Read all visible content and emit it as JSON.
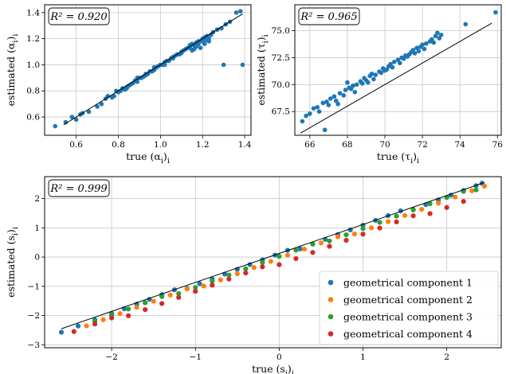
{
  "chart_data": [
    {
      "id": "alpha",
      "type": "scatter",
      "r2_label": "R² = 0.920",
      "xlabel_main": "true (α",
      "xlabel_sub": "i",
      "xlabel_tail": ")",
      "xlabel_sub2": "i",
      "ylabel_main": "estimated (α",
      "ylabel_sub": "i",
      "ylabel_tail": ")",
      "ylabel_sub2": "i",
      "xlim": [
        0.45,
        1.43
      ],
      "ylim": [
        0.46,
        1.46
      ],
      "xticks": [
        0.6,
        0.8,
        1.0,
        1.2,
        1.4
      ],
      "xtick_labels": [
        "0.6",
        "0.8",
        "1.0",
        "1.2",
        "1.4"
      ],
      "yticks": [
        0.6,
        0.8,
        1.0,
        1.2,
        1.4
      ],
      "ytick_labels": [
        "0.6",
        "0.8",
        "1.0",
        "1.2",
        "1.4"
      ],
      "grid": true,
      "identity_line": [
        [
          0.54,
          0.54
        ],
        [
          1.39,
          1.39
        ]
      ],
      "series": [
        {
          "color": "#1f77b4",
          "points": [
            [
              0.5,
              0.53
            ],
            [
              0.55,
              0.56
            ],
            [
              0.58,
              0.6
            ],
            [
              0.6,
              0.58
            ],
            [
              0.62,
              0.62
            ],
            [
              0.63,
              0.63
            ],
            [
              0.66,
              0.64
            ],
            [
              0.7,
              0.68
            ],
            [
              0.72,
              0.7
            ],
            [
              0.74,
              0.74
            ],
            [
              0.75,
              0.76
            ],
            [
              0.77,
              0.75
            ],
            [
              0.78,
              0.76
            ],
            [
              0.8,
              0.79
            ],
            [
              0.81,
              0.8
            ],
            [
              0.82,
              0.82
            ],
            [
              0.83,
              0.81
            ],
            [
              0.84,
              0.83
            ],
            [
              0.85,
              0.84
            ],
            [
              0.86,
              0.85
            ],
            [
              0.87,
              0.86
            ],
            [
              0.88,
              0.88
            ],
            [
              0.89,
              0.87
            ],
            [
              0.9,
              0.9
            ],
            [
              0.91,
              0.9
            ],
            [
              0.92,
              0.91
            ],
            [
              0.93,
              0.93
            ],
            [
              0.94,
              0.93
            ],
            [
              0.95,
              0.95
            ],
            [
              0.96,
              0.95
            ],
            [
              0.97,
              0.96
            ],
            [
              0.98,
              0.98
            ],
            [
              0.99,
              0.99
            ],
            [
              1.0,
              1.0
            ],
            [
              1.01,
              1.0
            ],
            [
              1.02,
              1.02
            ],
            [
              1.03,
              1.03
            ],
            [
              1.04,
              1.03
            ],
            [
              1.05,
              1.05
            ],
            [
              1.06,
              1.06
            ],
            [
              1.07,
              1.07
            ],
            [
              1.08,
              1.08
            ],
            [
              1.09,
              1.08
            ],
            [
              1.1,
              1.1
            ],
            [
              1.11,
              1.11
            ],
            [
              1.12,
              1.12
            ],
            [
              1.13,
              1.13
            ],
            [
              1.14,
              1.13
            ],
            [
              1.15,
              1.16
            ],
            [
              1.16,
              1.15
            ],
            [
              1.17,
              1.17
            ],
            [
              1.18,
              1.18
            ],
            [
              1.19,
              1.18
            ],
            [
              1.2,
              1.2
            ],
            [
              1.21,
              1.21
            ],
            [
              1.22,
              1.22
            ],
            [
              1.23,
              1.2
            ],
            [
              1.24,
              1.23
            ],
            [
              1.25,
              1.25
            ],
            [
              1.27,
              1.27
            ],
            [
              1.29,
              1.28
            ],
            [
              1.31,
              1.31
            ],
            [
              1.33,
              1.33
            ],
            [
              1.36,
              1.4
            ],
            [
              1.38,
              1.41
            ],
            [
              0.79,
              0.8
            ],
            [
              0.84,
              0.82
            ],
            [
              0.89,
              0.9
            ],
            [
              0.93,
              0.92
            ],
            [
              0.97,
              0.98
            ],
            [
              1.02,
              1.0
            ],
            [
              1.06,
              1.05
            ],
            [
              1.1,
              1.09
            ],
            [
              1.14,
              1.15
            ],
            [
              1.18,
              1.16
            ],
            [
              1.2,
              1.18
            ],
            [
              1.22,
              1.19
            ],
            [
              1.17,
              1.14
            ],
            [
              1.16,
              1.12
            ],
            [
              1.15,
              1.11
            ],
            [
              1.19,
              1.13
            ],
            [
              1.21,
              1.16
            ],
            [
              1.23,
              1.18
            ],
            [
              1.3,
              1.0
            ],
            [
              1.39,
              1.0
            ]
          ]
        }
      ]
    },
    {
      "id": "tau",
      "type": "scatter",
      "r2_label": "R² = 0.965",
      "xlabel_main": "true (τ",
      "xlabel_sub": "i",
      "xlabel_tail": ")",
      "xlabel_sub2": "i",
      "ylabel_main": "estimated (τ",
      "ylabel_sub": "i",
      "ylabel_tail": ")",
      "ylabel_sub2": "i",
      "xlim": [
        65.2,
        76.2
      ],
      "ylim": [
        65.3,
        77.4
      ],
      "xticks": [
        66,
        68,
        70,
        72,
        74,
        76
      ],
      "xtick_labels": [
        "66",
        "68",
        "70",
        "72",
        "74",
        "76"
      ],
      "yticks": [
        67.5,
        70.0,
        72.5,
        75.0
      ],
      "ytick_labels": [
        "67.5",
        "70.0",
        "72.5",
        "75.0"
      ],
      "grid": true,
      "identity_line": [
        [
          65.5,
          65.5
        ],
        [
          75.7,
          75.7
        ]
      ],
      "series": [
        {
          "color": "#1f77b4",
          "points": [
            [
              65.6,
              66.6
            ],
            [
              65.8,
              67.1
            ],
            [
              66.0,
              67.3
            ],
            [
              66.2,
              67.8
            ],
            [
              66.4,
              67.9
            ],
            [
              66.5,
              67.5
            ],
            [
              66.7,
              68.3
            ],
            [
              66.9,
              68.4
            ],
            [
              67.0,
              68.1
            ],
            [
              67.1,
              68.7
            ],
            [
              67.3,
              68.9
            ],
            [
              67.4,
              68.5
            ],
            [
              67.6,
              69.2
            ],
            [
              67.8,
              69.0
            ],
            [
              67.9,
              69.5
            ],
            [
              68.0,
              70.2
            ],
            [
              68.1,
              69.7
            ],
            [
              68.3,
              69.9
            ],
            [
              68.4,
              69.3
            ],
            [
              68.5,
              70.0
            ],
            [
              68.7,
              70.3
            ],
            [
              68.8,
              70.1
            ],
            [
              68.9,
              70.6
            ],
            [
              69.0,
              70.4
            ],
            [
              69.2,
              70.8
            ],
            [
              69.3,
              71.0
            ],
            [
              69.4,
              70.5
            ],
            [
              69.5,
              70.9
            ],
            [
              69.7,
              71.2
            ],
            [
              69.8,
              71.1
            ],
            [
              69.9,
              71.5
            ],
            [
              70.0,
              71.3
            ],
            [
              70.2,
              71.7
            ],
            [
              70.3,
              71.9
            ],
            [
              70.4,
              71.6
            ],
            [
              70.5,
              72.1
            ],
            [
              70.7,
              72.3
            ],
            [
              70.8,
              72.0
            ],
            [
              70.9,
              72.5
            ],
            [
              71.0,
              72.4
            ],
            [
              71.1,
              72.7
            ],
            [
              71.2,
              72.6
            ],
            [
              71.4,
              73.0
            ],
            [
              71.5,
              73.2
            ],
            [
              71.6,
              72.9
            ],
            [
              71.7,
              73.4
            ],
            [
              71.9,
              73.5
            ],
            [
              72.0,
              73.7
            ],
            [
              72.1,
              73.3
            ],
            [
              72.2,
              73.8
            ],
            [
              72.4,
              74.0
            ],
            [
              72.5,
              74.2
            ],
            [
              72.6,
              73.9
            ],
            [
              72.7,
              74.5
            ],
            [
              72.8,
              74.8
            ],
            [
              72.9,
              74.3
            ],
            [
              73.0,
              74.6
            ],
            [
              66.8,
              65.8
            ],
            [
              67.5,
              68.2
            ],
            [
              68.2,
              69.6
            ],
            [
              69.1,
              70.2
            ],
            [
              70.1,
              71.4
            ],
            [
              71.3,
              72.8
            ],
            [
              71.8,
              73.1
            ],
            [
              74.3,
              75.6
            ],
            [
              75.9,
              76.7
            ]
          ]
        }
      ]
    },
    {
      "id": "s",
      "type": "scatter",
      "r2_label": "R² = 0.999",
      "xlabel_main": "true (s",
      "xlabel_sub": "i",
      "xlabel_tail": ")",
      "xlabel_sub2": "i",
      "ylabel_main": "estimated (s",
      "ylabel_sub": "i",
      "ylabel_tail": ")",
      "ylabel_sub2": "i",
      "xlim": [
        -2.8,
        2.65
      ],
      "ylim": [
        -3.1,
        2.75
      ],
      "xticks": [
        -2,
        -1,
        0,
        1,
        2
      ],
      "xtick_labels": [
        "−2",
        "−1",
        "0",
        "1",
        "2"
      ],
      "yticks": [
        -3,
        -2,
        -1,
        0,
        1,
        2
      ],
      "ytick_labels": [
        "−3",
        "−2",
        "−1",
        "0",
        "1",
        "2"
      ],
      "grid": true,
      "legend_position": "lower-right",
      "identity_line": [
        [
          -2.6,
          -2.45
        ],
        [
          2.45,
          2.55
        ]
      ],
      "series": [
        {
          "name": "geometrical component 1",
          "color": "#1f77b4",
          "slope": 1.0,
          "offset": 0.08,
          "spread": 0.05,
          "x": [
            -2.6,
            -2.4,
            -2.2,
            -2.0,
            -1.85,
            -1.7,
            -1.55,
            -1.4,
            -1.25,
            -1.1,
            -0.95,
            -0.8,
            -0.65,
            -0.5,
            -0.35,
            -0.2,
            -0.05,
            0.1,
            0.25,
            0.4,
            0.55,
            0.7,
            0.85,
            1.0,
            1.15,
            1.3,
            1.45,
            1.6,
            1.75,
            1.9,
            2.05,
            2.2,
            2.35,
            2.42
          ]
        },
        {
          "name": "geometrical component 2",
          "color": "#ff7f0e",
          "slope": 0.99,
          "offset": -0.05,
          "spread": 0.05,
          "x": [
            -2.3,
            -2.1,
            -1.9,
            -1.7,
            -1.5,
            -1.3,
            -1.1,
            -0.9,
            -0.7,
            -0.5,
            -0.3,
            -0.1,
            0.1,
            0.3,
            0.5,
            0.7,
            0.9,
            1.1,
            1.3,
            1.5,
            1.7,
            1.9,
            2.1,
            2.3,
            2.45
          ]
        },
        {
          "name": "geometrical component 3",
          "color": "#2ca02c",
          "slope": 1.0,
          "offset": 0.0,
          "spread": 0.05,
          "x": [
            -2.2,
            -2.0,
            -1.8,
            -1.6,
            -1.4,
            -1.2,
            -1.0,
            -0.8,
            -0.6,
            -0.4,
            -0.2,
            0.0,
            0.2,
            0.4,
            0.6,
            0.8,
            1.0,
            1.2,
            1.4,
            1.6,
            1.8,
            2.0,
            2.2,
            2.35
          ]
        },
        {
          "name": "geometrical component 4",
          "color": "#d62728",
          "slope": 0.97,
          "offset": -0.2,
          "spread": 0.06,
          "x": [
            -2.45,
            -2.2,
            -2.0,
            -1.8,
            -1.6,
            -1.4,
            -1.2,
            -1.0,
            -0.8,
            -0.6,
            -0.4,
            -0.2,
            0.0,
            0.2,
            0.4,
            0.6,
            0.8,
            1.0,
            1.2,
            1.4,
            1.6,
            1.8,
            2.0,
            2.2
          ]
        }
      ]
    }
  ]
}
